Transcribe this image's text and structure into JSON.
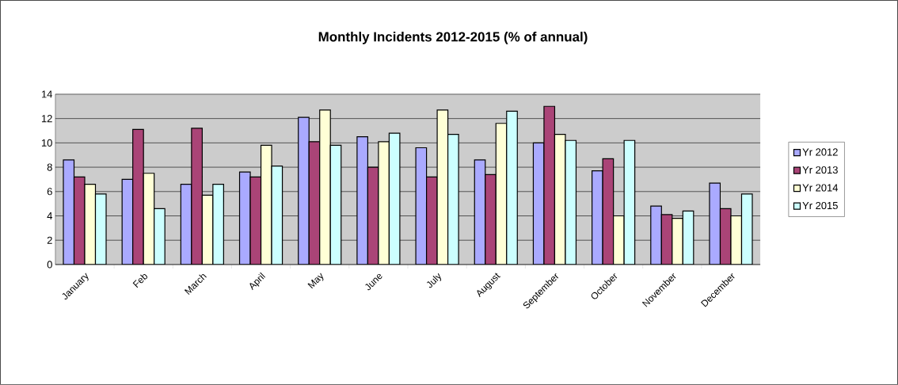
{
  "chart_data": {
    "type": "bar",
    "title": "Monthly Incidents 2012-2015 (% of annual)",
    "categories": [
      "January",
      "Feb",
      "March",
      "April",
      "May",
      "June",
      "July",
      "August",
      "September",
      "October",
      "November",
      "December"
    ],
    "series": [
      {
        "name": "Yr 2012",
        "color": "#aaaaff",
        "values": [
          8.6,
          7.0,
          6.6,
          7.6,
          12.1,
          10.5,
          9.6,
          8.6,
          10.0,
          7.7,
          4.8,
          6.7
        ]
      },
      {
        "name": "Yr 2013",
        "color": "#aa4477",
        "values": [
          7.2,
          11.1,
          11.2,
          7.2,
          10.1,
          8.0,
          7.2,
          7.4,
          13.0,
          8.7,
          4.1,
          4.6
        ]
      },
      {
        "name": "Yr 2014",
        "color": "#ffffd6",
        "values": [
          6.6,
          7.5,
          5.7,
          9.8,
          12.7,
          10.1,
          12.7,
          11.6,
          10.7,
          4.0,
          3.8,
          4.0
        ]
      },
      {
        "name": "Yr 2015",
        "color": "#ccffff",
        "values": [
          5.8,
          4.6,
          6.6,
          8.1,
          9.8,
          10.8,
          10.7,
          12.6,
          10.2,
          10.2,
          4.4,
          5.8
        ]
      }
    ],
    "ylim": [
      0,
      14
    ],
    "yticks": [
      0,
      2,
      4,
      6,
      8,
      10,
      12,
      14
    ],
    "grid": "y",
    "legend": "right"
  }
}
